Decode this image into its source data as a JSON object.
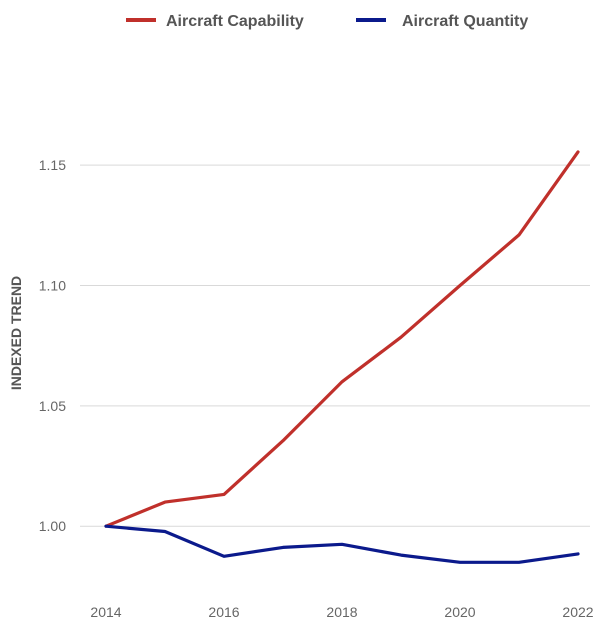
{
  "chart_data": {
    "type": "line",
    "title": "",
    "xlabel": "",
    "ylabel": "INDEXED TREND",
    "x": [
      2014,
      2015,
      2016,
      2017,
      2018,
      2019,
      2020,
      2021,
      2022
    ],
    "x_tick_labels": [
      "2014",
      "2016",
      "2018",
      "2020",
      "2022"
    ],
    "y_tick_labels": [
      "1.00",
      "1.05",
      "1.10",
      "1.15"
    ],
    "ylim": [
      0.9735,
      1.1895
    ],
    "grid": true,
    "legend_position": "top-center",
    "series": [
      {
        "name": "Aircraft Capability",
        "color": "#c0302b",
        "values": [
          1.0,
          1.01,
          1.0132,
          1.0355,
          1.06,
          1.0785,
          1.1,
          1.121,
          1.1555
        ]
      },
      {
        "name": "Aircraft Quantity",
        "color": "#0b1a8c",
        "values": [
          1.0,
          0.9978,
          0.9875,
          0.9912,
          0.9925,
          0.988,
          0.985,
          0.985,
          0.9885
        ]
      }
    ]
  }
}
